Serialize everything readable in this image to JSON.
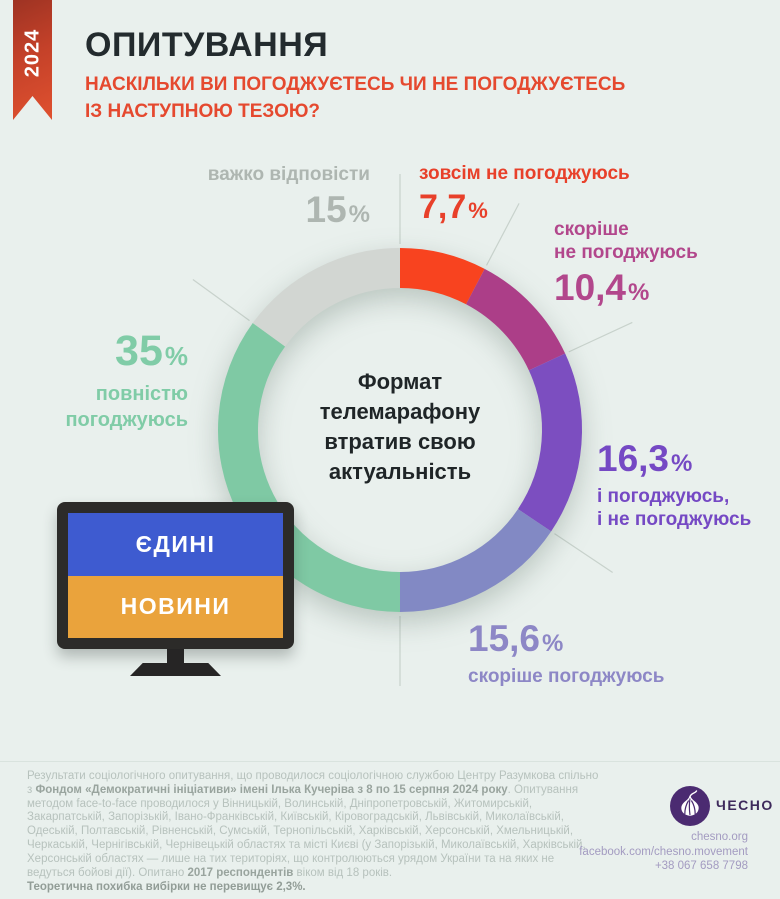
{
  "ribbon": {
    "year": "2024"
  },
  "header": {
    "title": "ОПИТУВАННЯ",
    "subtitle_line1": "НАСКІЛЬКИ ВИ ПОГОДЖУЄТЕСЬ ЧИ НЕ ПОГОДЖУЄТЕСЬ",
    "subtitle_line2": "ІЗ НАСТУПНОЮ ТЕЗОЮ?",
    "subtitle_color": "#e5492f"
  },
  "chart_data": {
    "type": "pie",
    "variant": "donut",
    "title": "Формат телемарафону втратив свою актуальність",
    "center_lines": [
      "Формат",
      "телемарафону",
      "втратив свою",
      "актуальність"
    ],
    "unit": "%",
    "total": 100,
    "start_angle_deg": -90,
    "direction": "clockwise",
    "legend_position": "around",
    "segments": [
      {
        "id": "zovsim-ne-pohodzhuius",
        "label": "зовсім не погоджуюсь",
        "caption_lines": [
          "зовсім не погоджуюсь"
        ],
        "value": 7.7,
        "display": "7,7",
        "color": "#f8431f",
        "label_color": "#e8402a"
      },
      {
        "id": "skorishe-ne-pohodzhuius",
        "label": "скоріше не погоджуюсь",
        "caption_lines": [
          "скоріше",
          "не погоджуюсь"
        ],
        "value": 10.4,
        "display": "10,4",
        "color": "#ac3e88",
        "label_color": "#b2478c"
      },
      {
        "id": "i-pohodzhuius-i-ne",
        "label": "і погоджуюсь, і не погоджуюсь",
        "caption_lines": [
          "і погоджуюсь,",
          "і не погоджуюсь"
        ],
        "value": 16.3,
        "display": "16,3",
        "color": "#7c4ec0",
        "label_color": "#7549c4"
      },
      {
        "id": "skorishe-pohodzhuius",
        "label": "скоріше погоджуюсь",
        "caption_lines": [
          "скоріше погоджуюсь"
        ],
        "value": 15.6,
        "display": "15,6",
        "color": "#8289c4",
        "label_color": "#8d87c6"
      },
      {
        "id": "povnistiu-pohodzhuius",
        "label": "повністю погоджуюсь",
        "caption_lines": [
          "повністю",
          "погоджуюсь"
        ],
        "value": 35,
        "display": "35",
        "color": "#7fc9a4",
        "label_color": "#80cca7"
      },
      {
        "id": "vazhko-vidpovisty",
        "label": "важко відповісти",
        "caption_lines": [
          "важко відповісти"
        ],
        "value": 15,
        "display": "15",
        "color": "#d2d6d2",
        "label_color": "#aeb6b1"
      }
    ]
  },
  "tv": {
    "top_text": "ЄДИНІ",
    "bottom_text": "НОВИНИ",
    "flag_blue": "#3e5bd0",
    "flag_yellow": "#eaa33c"
  },
  "footer": {
    "part1": "Результати соціологічного опитування, що проводилося соціологічною службою Центру Разумкова спільно з ",
    "part2_bold": "Фондом «Демократичні ініціативи» імені Ілька Кучеріва з 8 по 15 серпня 2024 року",
    "part3": ". Опитування методом face-to-face проводилося у Вінницькій, Волинській, Дніпропетровській, Житомирській, Закарпатській, Запорізькій, Івано-Франківській, Київській, Кіровоградській, Львівській, Миколаївській, Одеській, Полтавській, Рівненській, Сумській, Тернопільській, Харківській, Херсонській, Хмельницькій, Черкаській, Чернігівській, Чернівецькій областях та місті Києві (у Запорізькій, Миколаївській, Харківській, Херсонській областях — лише на тих територіях, що контролюються урядом України та на яких не ведуться бойові дії). Опитано ",
    "part4_bold": "2017 респондентів",
    "part5": " віком від 18 років.",
    "note_bold": "Теоретична похибка вибірки не перевищує 2,3%."
  },
  "brand": {
    "name": "ЧЕСНО",
    "logo_color": "#4b2b71",
    "website": "chesno.org",
    "facebook": "facebook.com/chesno.movement",
    "phone": "+38 067 658 7798"
  }
}
